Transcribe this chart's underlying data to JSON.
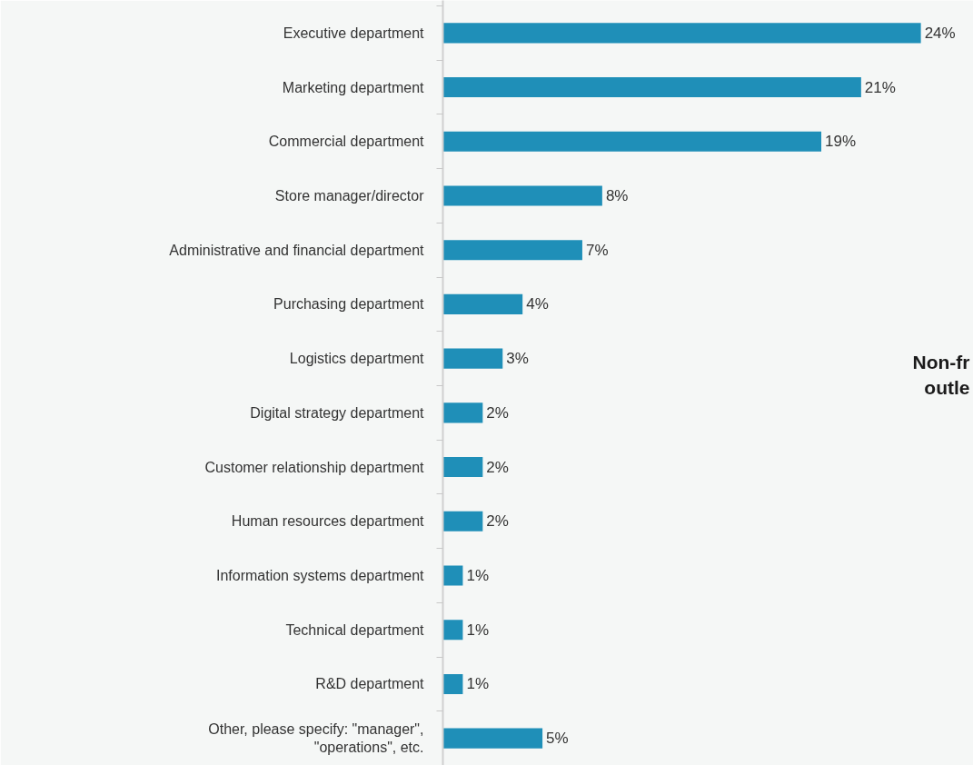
{
  "chart_data": {
    "type": "bar",
    "orientation": "horizontal",
    "categories": [
      "Executive department",
      "Marketing department",
      "Commercial department",
      "Store manager/director",
      "Administrative and financial department",
      "Purchasing department",
      "Logistics department",
      "Digital strategy department",
      "Customer relationship department",
      "Human resources department",
      "Information systems department",
      "Technical department",
      "R&D department",
      "Other, please specify: \"manager\", \"operations\", etc."
    ],
    "values": [
      24,
      21,
      19,
      8,
      7,
      4,
      3,
      2,
      2,
      2,
      1,
      1,
      1,
      5
    ],
    "value_labels": [
      "24%",
      "21%",
      "19%",
      "8%",
      "7%",
      "4%",
      "3%",
      "2%",
      "2%",
      "2%",
      "1%",
      "1%",
      "1%",
      "5%"
    ],
    "color": "#1f8fb8",
    "grid": false,
    "annotations": [
      {
        "text": "Non-fr\noutle"
      }
    ]
  }
}
